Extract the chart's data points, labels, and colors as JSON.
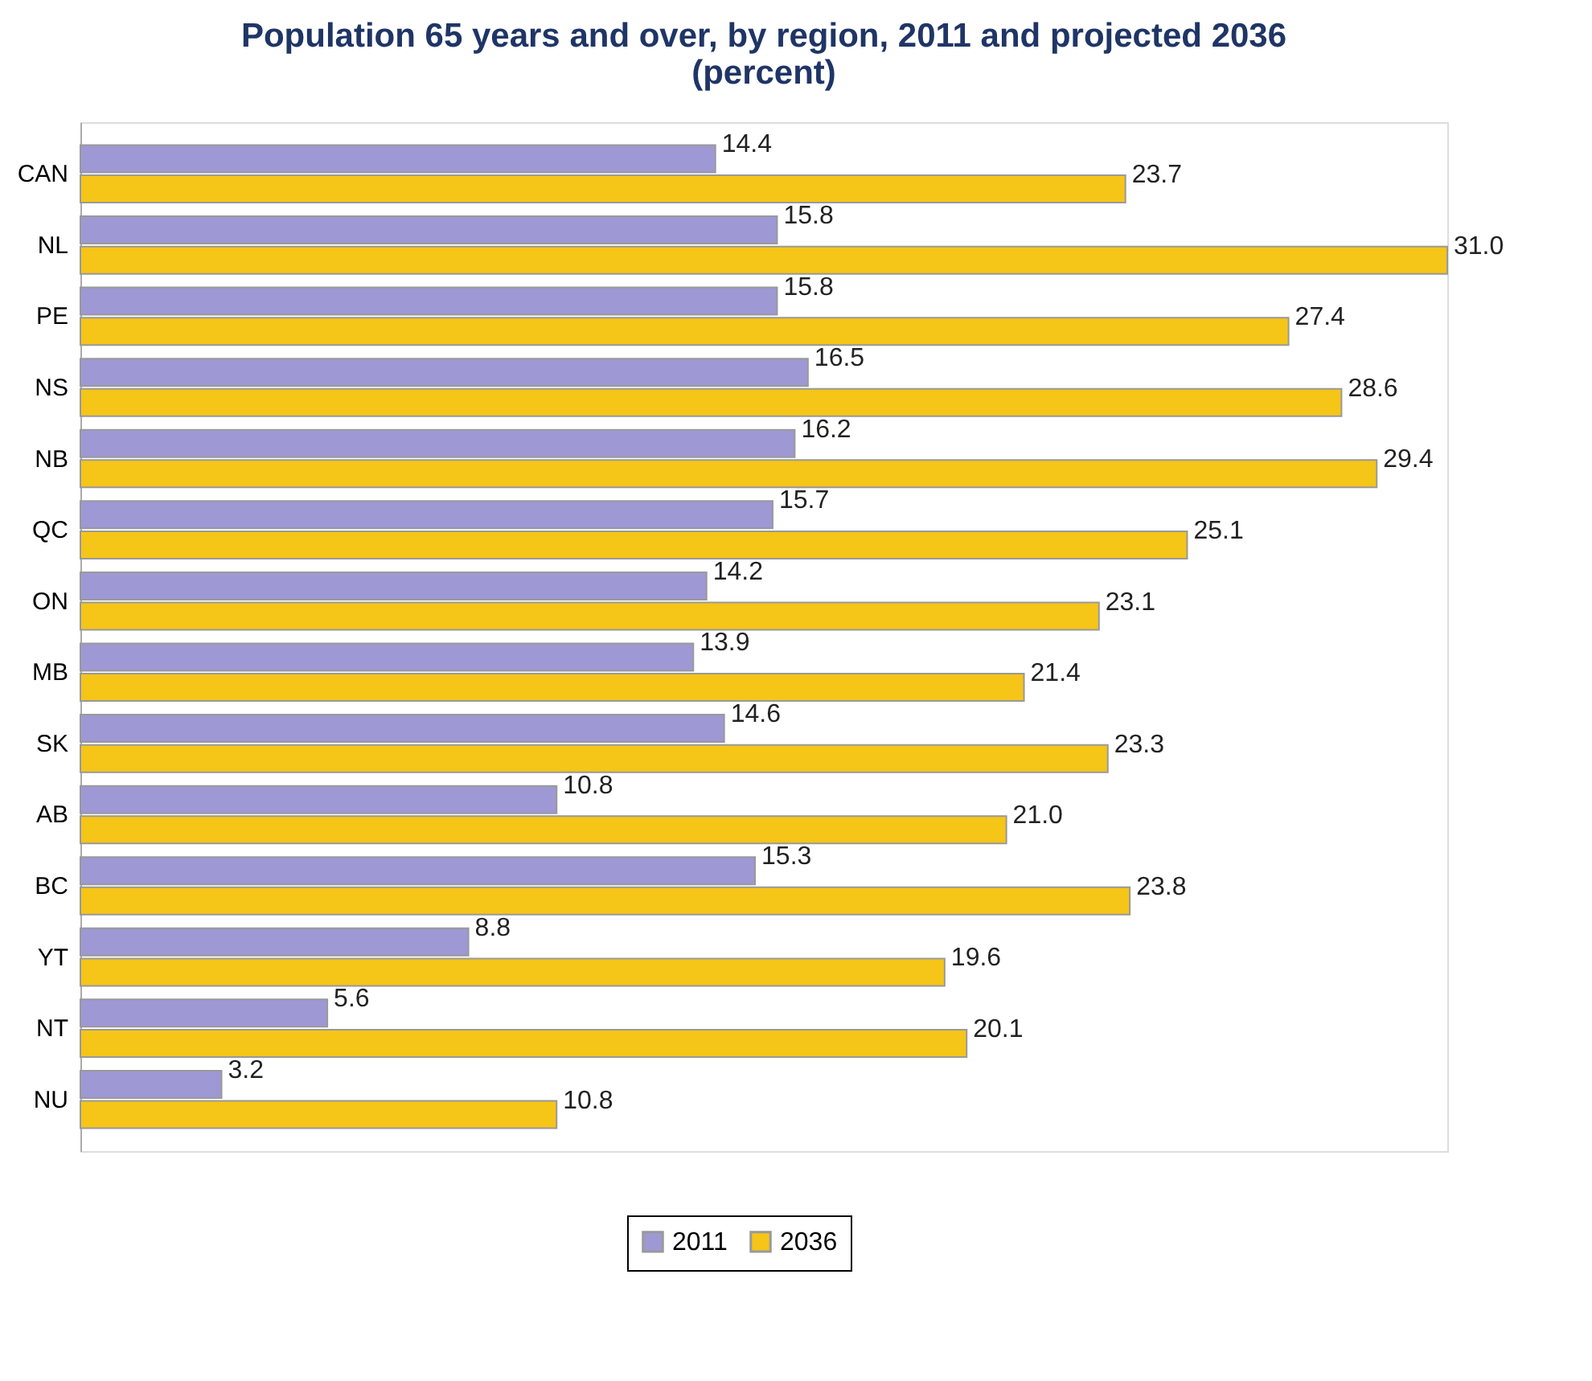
{
  "chart_data": {
    "type": "bar",
    "orientation": "horizontal",
    "title": [
      "Population 65 years and over, by region, 2011 and projected 2036",
      "(percent)"
    ],
    "categories": [
      "CAN",
      "NL",
      "PE",
      "NS",
      "NB",
      "QC",
      "ON",
      "MB",
      "SK",
      "AB",
      "BC",
      "YT",
      "NT",
      "NU"
    ],
    "series": [
      {
        "name": "2011",
        "color": "#9e98d4",
        "values": [
          14.4,
          15.8,
          15.8,
          16.5,
          16.2,
          15.7,
          14.2,
          13.9,
          14.6,
          10.8,
          15.3,
          8.8,
          5.6,
          3.2
        ],
        "value_labels": [
          "14.4",
          "15.8",
          "15.8",
          "16.5",
          "16.2",
          "15.7",
          "14.2",
          "13.9",
          "14.6",
          "10.8",
          "15.3",
          "8.8",
          "5.6",
          "3.2"
        ]
      },
      {
        "name": "2036",
        "color": "#f5c518",
        "values": [
          23.7,
          31.0,
          27.4,
          28.6,
          29.4,
          25.1,
          23.1,
          21.4,
          23.3,
          21.0,
          23.8,
          19.6,
          20.1,
          10.8
        ],
        "value_labels": [
          "23.7",
          "31.0",
          "27.4",
          "28.6",
          "29.4",
          "25.1",
          "23.1",
          "21.4",
          "23.3",
          "21.0",
          "23.8",
          "19.6",
          "20.1",
          "10.8"
        ]
      }
    ],
    "legend": "bottom",
    "grid": false,
    "tick_labels": "y"
  }
}
